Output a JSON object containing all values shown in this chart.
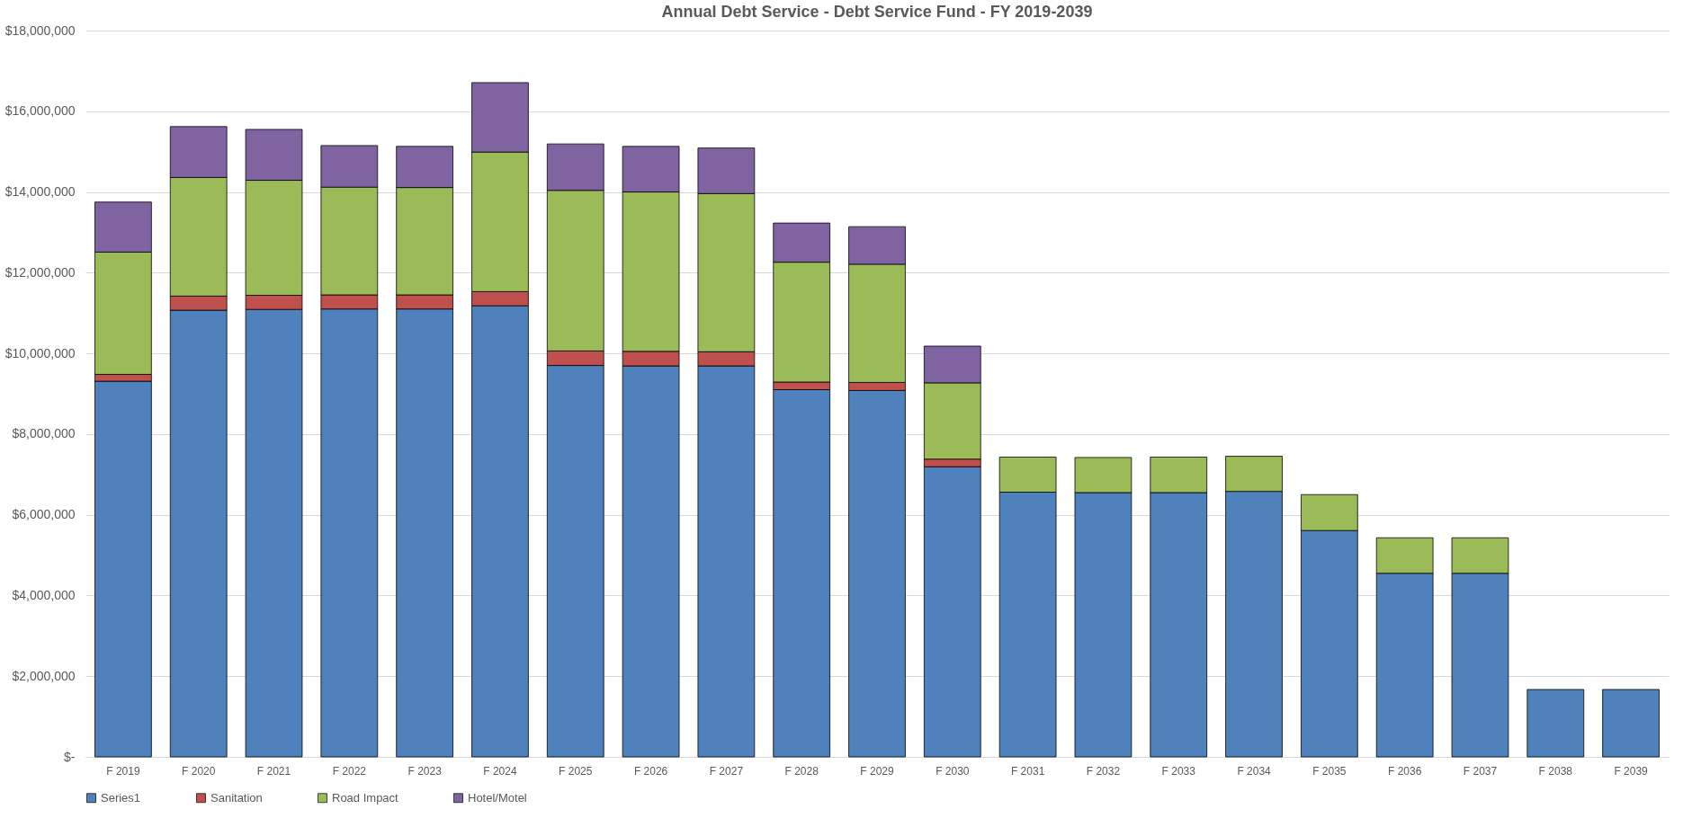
{
  "chart_data": {
    "type": "bar",
    "title": "Annual Debt Service - Debt Service Fund - FY 2019-2039",
    "stacked": true,
    "categories": [
      "F 2019",
      "F 2020",
      "F 2021",
      "F 2022",
      "F 2023",
      "F 2024",
      "F 2025",
      "F 2026",
      "F 2027",
      "F 2028",
      "F 2029",
      "F 2030",
      "F 2031",
      "F 2032",
      "F 2033",
      "F 2034",
      "F 2035",
      "F 2036",
      "F 2037",
      "F 2038",
      "F 2039"
    ],
    "series": [
      {
        "name": "Series1",
        "color": "#4f81bd",
        "values": [
          9310000,
          11070000,
          11090000,
          11100000,
          11100000,
          11180000,
          9700000,
          9690000,
          9690000,
          9100000,
          9080000,
          7190000,
          6560000,
          6550000,
          6550000,
          6580000,
          5610000,
          4550000,
          4550000,
          1670000,
          1670000
        ]
      },
      {
        "name": "Sanitation",
        "color": "#c0504d",
        "values": [
          170000,
          350000,
          350000,
          350000,
          350000,
          350000,
          360000,
          360000,
          350000,
          190000,
          200000,
          190000,
          null,
          null,
          null,
          null,
          null,
          null,
          null,
          null,
          null
        ]
      },
      {
        "name": "Road Impact",
        "color": "#9bbb59",
        "values": [
          3030000,
          2940000,
          2850000,
          2670000,
          2660000,
          3460000,
          3980000,
          3950000,
          3920000,
          2970000,
          2930000,
          1890000,
          870000,
          870000,
          880000,
          870000,
          890000,
          880000,
          880000,
          null,
          null
        ]
      },
      {
        "name": "Hotel/Motel",
        "color": "#8064a2",
        "values": [
          1240000,
          1260000,
          1260000,
          1030000,
          1020000,
          1720000,
          1150000,
          1130000,
          1130000,
          970000,
          930000,
          910000,
          null,
          null,
          null,
          null,
          null,
          null,
          null,
          null,
          null
        ]
      }
    ],
    "ylim": [
      0,
      18000000
    ],
    "yticks": [
      {
        "value": 0,
        "label": "$-"
      },
      {
        "value": 2000000,
        "label": "$2,000,000"
      },
      {
        "value": 4000000,
        "label": "$4,000,000"
      },
      {
        "value": 6000000,
        "label": "$6,000,000"
      },
      {
        "value": 8000000,
        "label": "$8,000,000"
      },
      {
        "value": 10000000,
        "label": "$10,000,000"
      },
      {
        "value": 12000000,
        "label": "$12,000,000"
      },
      {
        "value": 14000000,
        "label": "$14,000,000"
      },
      {
        "value": 16000000,
        "label": "$16,000,000"
      },
      {
        "value": 18000000,
        "label": "$18,000,000"
      }
    ],
    "grid": "y",
    "legend": "bottom"
  }
}
